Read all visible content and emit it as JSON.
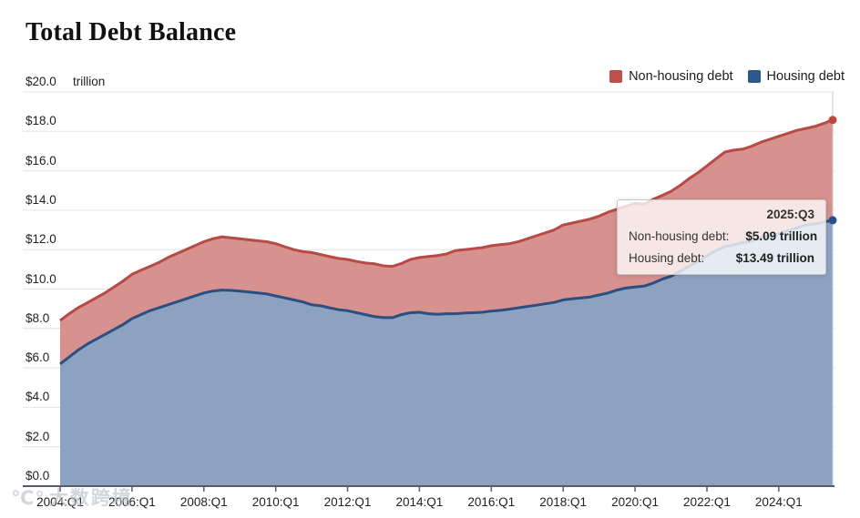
{
  "page": {
    "title": "Total Debt Balance"
  },
  "legend": {
    "items": [
      {
        "label": "Non-housing debt",
        "color": "#c0504d"
      },
      {
        "label": "Housing debt",
        "color": "#2e578a"
      }
    ]
  },
  "y_axis": {
    "unit": "trillion",
    "tick_values": [
      0,
      2,
      4,
      6,
      8,
      10,
      12,
      14,
      16,
      18,
      20
    ],
    "tick_labels": [
      "$0.0",
      "$2.0",
      "$4.0",
      "$6.0",
      "$8.0",
      "$10.0",
      "$12.0",
      "$14.0",
      "$16.0",
      "$18.0",
      "$20.0"
    ]
  },
  "x_axis": {
    "tick_quarters": [
      0,
      8,
      16,
      24,
      32,
      40,
      48,
      56,
      64,
      72,
      80
    ],
    "tick_labels": [
      "2004:Q1",
      "2006:Q1",
      "2008:Q1",
      "2010:Q1",
      "2012:Q1",
      "2014:Q1",
      "2016:Q1",
      "2018:Q1",
      "2020:Q1",
      "2022:Q1",
      "2024:Q1"
    ]
  },
  "tooltip": {
    "title": "2025:Q3",
    "rows": [
      {
        "label": "Non-housing debt:",
        "value": "$5.09 trillion"
      },
      {
        "label": "Housing debt:",
        "value": "$13.49 trillion"
      }
    ]
  },
  "watermark": {
    "logo": "℃°",
    "text": "大数跨境"
  },
  "colors": {
    "red_line": "#b84a46",
    "red_fill": "#d7918f",
    "red_dot": "#bf4542",
    "blue_line": "#2b4f80",
    "blue_fill": "#8da2c1",
    "blue_dot": "#27508a",
    "grid": "#e4e4e4",
    "axis": "#555b6e",
    "crosshair": "#c4c8d2"
  },
  "chart_data": {
    "type": "area",
    "stacked": true,
    "title": "Total Debt Balance",
    "ylabel": "trillions of dollars",
    "ylim": [
      0,
      20
    ],
    "grid": true,
    "legend_position": "top-right",
    "x_unit": "quarter",
    "x_start": "2004:Q1",
    "x_end": "2025:Q3",
    "x_tick_labels": [
      "2004:Q1",
      "2006:Q1",
      "2008:Q1",
      "2010:Q1",
      "2012:Q1",
      "2014:Q1",
      "2016:Q1",
      "2018:Q1",
      "2020:Q1",
      "2022:Q1",
      "2024:Q1"
    ],
    "series": [
      {
        "name": "Housing debt",
        "values": [
          6.2,
          6.55,
          6.9,
          7.2,
          7.45,
          7.7,
          7.95,
          8.2,
          8.5,
          8.7,
          8.9,
          9.05,
          9.2,
          9.35,
          9.5,
          9.65,
          9.8,
          9.9,
          9.95,
          9.93,
          9.9,
          9.85,
          9.8,
          9.75,
          9.65,
          9.55,
          9.45,
          9.35,
          9.2,
          9.15,
          9.05,
          8.95,
          8.9,
          8.8,
          8.7,
          8.6,
          8.55,
          8.55,
          8.7,
          8.8,
          8.82,
          8.75,
          8.72,
          8.75,
          8.75,
          8.78,
          8.8,
          8.82,
          8.88,
          8.92,
          8.98,
          9.05,
          9.12,
          9.18,
          9.25,
          9.32,
          9.45,
          9.5,
          9.55,
          9.6,
          9.7,
          9.8,
          9.95,
          10.05,
          10.1,
          10.15,
          10.3,
          10.5,
          10.65,
          10.9,
          11.15,
          11.4,
          11.7,
          11.95,
          12.15,
          12.25,
          12.35,
          12.45,
          12.6,
          12.7,
          12.8,
          12.95,
          13.1,
          13.25,
          13.3,
          13.4,
          13.49
        ]
      },
      {
        "name": "Non-housing debt",
        "values": [
          2.2,
          2.2,
          2.15,
          2.1,
          2.1,
          2.1,
          2.15,
          2.2,
          2.25,
          2.25,
          2.25,
          2.3,
          2.4,
          2.45,
          2.5,
          2.55,
          2.6,
          2.65,
          2.7,
          2.67,
          2.65,
          2.65,
          2.65,
          2.65,
          2.65,
          2.6,
          2.55,
          2.55,
          2.65,
          2.6,
          2.6,
          2.6,
          2.6,
          2.6,
          2.62,
          2.68,
          2.63,
          2.6,
          2.6,
          2.7,
          2.78,
          2.9,
          2.98,
          3.03,
          3.2,
          3.22,
          3.25,
          3.28,
          3.32,
          3.33,
          3.32,
          3.35,
          3.43,
          3.52,
          3.6,
          3.68,
          3.8,
          3.85,
          3.9,
          3.95,
          4.0,
          4.1,
          4.1,
          4.15,
          4.25,
          4.15,
          4.25,
          4.25,
          4.3,
          4.35,
          4.45,
          4.5,
          4.55,
          4.65,
          4.8,
          4.8,
          4.75,
          4.8,
          4.85,
          4.9,
          4.95,
          4.95,
          4.95,
          4.9,
          4.95,
          5.0,
          5.09
        ]
      }
    ],
    "highlight_point": {
      "x": "2025:Q3",
      "housing_debt": 13.49,
      "non_housing_debt": 5.09,
      "total": 18.58
    }
  }
}
